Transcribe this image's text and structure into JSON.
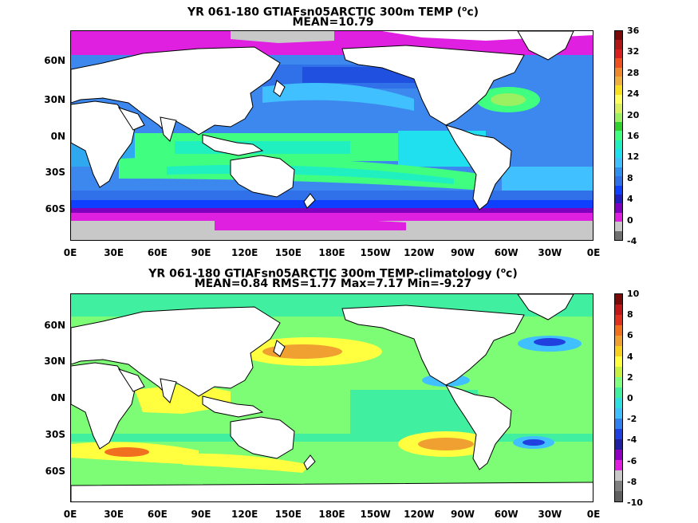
{
  "panels": [
    {
      "title_main": "YR 061-180 GTIAFsn05ARCTIC 300m TEMP (",
      "title_unit": "o",
      "title_end": "c)",
      "subtitle": "MEAN=10.79",
      "colorbar_labels": [
        "36",
        "32",
        "28",
        "24",
        "20",
        "16",
        "12",
        "8",
        "4",
        "0",
        "-4"
      ],
      "colorbar_colors": [
        "#7a0a0a",
        "#b01818",
        "#d82020",
        "#ee5020",
        "#f08830",
        "#f0b040",
        "#f8e020",
        "#ffff60",
        "#d8f060",
        "#9af060",
        "#30d030",
        "#40ff80",
        "#20f0c0",
        "#20e0f0",
        "#40c0ff",
        "#3090f0",
        "#3070e8",
        "#1040ff",
        "#2020c0",
        "#8000c0",
        "#e020e0",
        "#c8c8c8",
        "#707070"
      ],
      "mean_temp": 10.79
    },
    {
      "title_main": "YR 061-180 GTIAFsn05ARCTIC 300m TEMP-climatology (",
      "title_unit": "o",
      "title_end": "c)",
      "subtitle": "MEAN=0.84   RMS=1.77   Max=7.17   Min=-9.27",
      "colorbar_labels": [
        "10",
        "8",
        "6",
        "4",
        "2",
        "0",
        "-2",
        "-4",
        "-6",
        "-8",
        "-10"
      ],
      "colorbar_colors": [
        "#7a0a0a",
        "#c01818",
        "#e03020",
        "#f07020",
        "#f0a030",
        "#f8d020",
        "#ffff40",
        "#c8f040",
        "#80ff80",
        "#40f0a0",
        "#30e0e0",
        "#40c0ff",
        "#3080f0",
        "#2040e0",
        "#2020a0",
        "#9000c0",
        "#e020e0",
        "#c8c8c8",
        "#808080",
        "#606060"
      ],
      "mean": 0.84,
      "rms": 1.77,
      "max": 7.17,
      "min": -9.27
    }
  ],
  "lat_labels": [
    "60N",
    "30N",
    "0N",
    "30S",
    "60S"
  ],
  "lon_labels": [
    "0E",
    "30E",
    "60E",
    "90E",
    "120E",
    "150E",
    "180E",
    "150W",
    "120W",
    "90W",
    "60W",
    "30W",
    "0E"
  ]
}
